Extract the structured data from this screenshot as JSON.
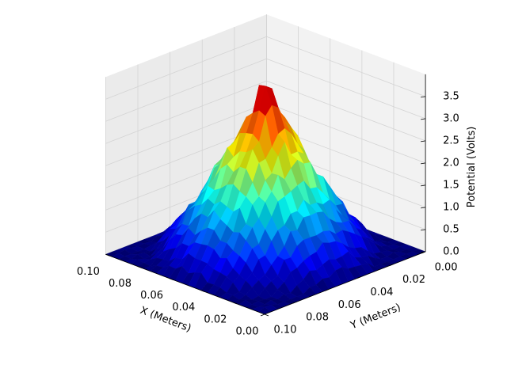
{
  "chart_data": {
    "type": "surface3d",
    "title": "",
    "xlabel": "X (Meters)",
    "ylabel": "Y (Meters)",
    "zlabel": "Potential (Volts)",
    "xlim": [
      0.0,
      0.1
    ],
    "ylim": [
      0.0,
      0.1
    ],
    "zlim": [
      0.0,
      4.0
    ],
    "x_ticks": [
      "0.00",
      "0.02",
      "0.04",
      "0.06",
      "0.08",
      "0.10"
    ],
    "y_ticks": [
      "0.00",
      "0.02",
      "0.04",
      "0.06",
      "0.08",
      "0.10"
    ],
    "z_ticks": [
      "0.0",
      "0.5",
      "1.0",
      "1.5",
      "2.0",
      "2.5",
      "3.0",
      "3.5"
    ],
    "colormap": "jet",
    "grid": true,
    "peak": {
      "x": 0.05,
      "y": 0.05,
      "z": 3.9
    },
    "grid_points": 26,
    "pane_color": "#f2f2f2",
    "grid_color": "#d4d4d4",
    "edge_color": "#bfbfbf"
  }
}
